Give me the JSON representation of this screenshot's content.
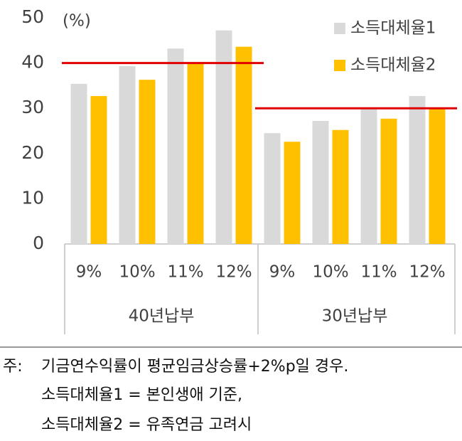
{
  "chart_data": {
    "type": "bar",
    "y_label": "(%)",
    "categories": [
      "9%",
      "10%",
      "11%",
      "12%",
      "9%",
      "10%",
      "11%",
      "12%"
    ],
    "groups": [
      "40년납부",
      "30년납부"
    ],
    "series": [
      {
        "name": "소득대체율1",
        "color": "#d9d9d9",
        "values": [
          35.4,
          39.3,
          43.2,
          47.2,
          24.5,
          27.2,
          29.9,
          32.7
        ]
      },
      {
        "name": "소득대체율2",
        "color": "#ffc000",
        "values": [
          32.7,
          36.3,
          40.0,
          43.6,
          22.6,
          25.2,
          27.7,
          30.0
        ]
      }
    ],
    "reference_lines": [
      40,
      30
    ],
    "reference_color": "#e00000",
    "ylim": [
      0,
      50
    ],
    "yticks": [
      0,
      10,
      20,
      30,
      40,
      50
    ],
    "note": {
      "prefix": "주:",
      "lines": [
        "기금연수익률이 평균임금상승률+2%p일 경우.",
        "소득대체율1 = 본인생애 기준,",
        "소득대체율2 = 유족연금 고려시"
      ]
    }
  }
}
